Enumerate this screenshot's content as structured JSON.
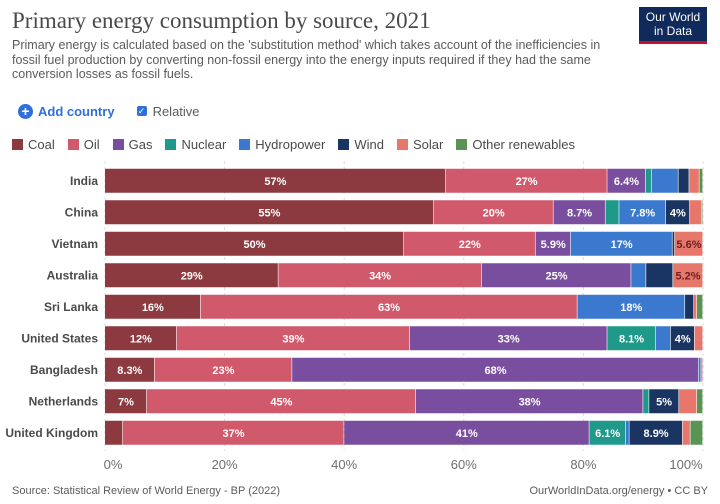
{
  "header": {
    "title": "Primary energy consumption by source, 2021",
    "subtitle": "Primary energy is calculated based on the 'substitution method' which takes account of the inefficiencies in fossil fuel production by converting non-fossil energy into the energy inputs required if they had the same conversion losses as fossil fuels.",
    "logo_line1": "Our World",
    "logo_line2": "in Data"
  },
  "controls": {
    "add_country": "Add country",
    "relative": "Relative",
    "relative_checked": true
  },
  "footer": {
    "source": "Source: Statistical Review of World Energy - BP (2022)",
    "credit": "OurWorldInData.org/energy • CC BY"
  },
  "chart_data": {
    "type": "bar",
    "orientation": "horizontal",
    "stacked": true,
    "relative": true,
    "xlim": [
      0,
      100
    ],
    "xticks": [
      "0%",
      "20%",
      "40%",
      "60%",
      "80%",
      "100%"
    ],
    "grid": true,
    "legend_position": "top",
    "categories": [
      "India",
      "China",
      "Vietnam",
      "Australia",
      "Sri Lanka",
      "United States",
      "Bangladesh",
      "Netherlands",
      "United Kingdom"
    ],
    "series": [
      {
        "name": "Coal",
        "color": "#8c3a3f",
        "values": [
          57,
          55,
          50,
          29,
          16,
          12,
          8.3,
          7,
          3
        ],
        "labels": [
          "57%",
          "55%",
          "50%",
          "29%",
          "16%",
          "12%",
          "8.3%",
          "7%",
          ""
        ]
      },
      {
        "name": "Oil",
        "color": "#d0596b",
        "values": [
          27,
          20,
          22,
          34,
          63,
          39,
          23,
          45,
          37
        ],
        "labels": [
          "27%",
          "20%",
          "22%",
          "34%",
          "63%",
          "39%",
          "23%",
          "45%",
          "37%"
        ]
      },
      {
        "name": "Gas",
        "color": "#7a4e9e",
        "values": [
          6.4,
          8.7,
          5.9,
          25,
          0,
          33,
          68,
          38,
          41
        ],
        "labels": [
          "6.4%",
          "8.7%",
          "5.9%",
          "25%",
          "",
          "33%",
          "68%",
          "38%",
          "41%"
        ]
      },
      {
        "name": "Nuclear",
        "color": "#1f9a8a",
        "values": [
          1,
          2.3,
          0,
          0,
          0,
          8.1,
          0,
          1,
          6.1
        ],
        "labels": [
          "",
          "",
          "",
          "",
          "",
          "8.1%",
          "",
          "",
          "6.1%"
        ]
      },
      {
        "name": "Hydropower",
        "color": "#3b79cf",
        "values": [
          4.5,
          7.8,
          17,
          2.5,
          18,
          2.5,
          0.4,
          0,
          0.6
        ],
        "labels": [
          "",
          "7.8%",
          "17%",
          "",
          "18%",
          "",
          "",
          "",
          ""
        ]
      },
      {
        "name": "Wind",
        "color": "#1a3561",
        "values": [
          1.8,
          4,
          0.4,
          4.5,
          1.5,
          4,
          0,
          5,
          8.9
        ],
        "labels": [
          "",
          "4%",
          "",
          "",
          "",
          "4%",
          "",
          "5%",
          "8.9%"
        ]
      },
      {
        "name": "Solar",
        "color": "#e8776b",
        "values": [
          1.7,
          2,
          5.6,
          5.2,
          0.5,
          1.6,
          0.3,
          3,
          1.3
        ],
        "labels": [
          "",
          "",
          "5.6%",
          "5.2%",
          "",
          "",
          "",
          "",
          ""
        ]
      },
      {
        "name": "Other renewables",
        "color": "#5a9454",
        "values": [
          0.6,
          0.2,
          0.1,
          0.8,
          1,
          0.8,
          0,
          1,
          2.1
        ],
        "labels": [
          "",
          "",
          "",
          "",
          "",
          "",
          "",
          "",
          ""
        ]
      }
    ]
  }
}
